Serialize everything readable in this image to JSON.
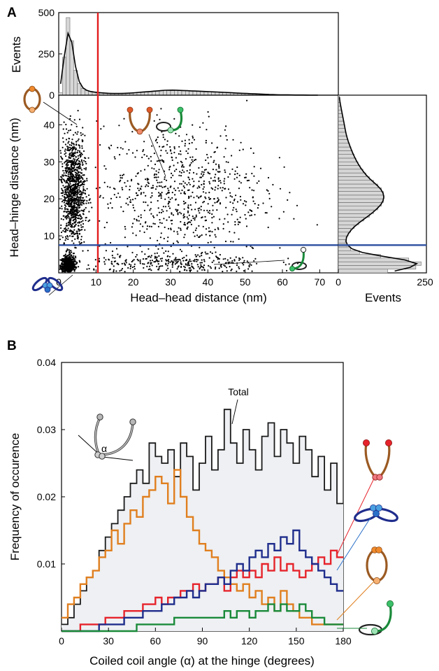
{
  "panels": {
    "a_label": "A",
    "b_label": "B"
  },
  "colors": {
    "total": "#1a1a1a",
    "total_fill": "#eef0f3",
    "orange": "#e07f1f",
    "red": "#e6232b",
    "blue": "#1f2d8c",
    "green": "#1a8a3a",
    "cutoff_red": "#e11d1d",
    "cutoff_blue": "#2d4fa0",
    "hist_fill": "#d6d6d6"
  },
  "chart_data": [
    {
      "id": "scatter",
      "type": "scatter",
      "xlabel": "Head–head distance (nm)",
      "ylabel": "Head–hinge distance (nm)",
      "xlim": [
        0,
        75
      ],
      "ylim": [
        0,
        48
      ],
      "xticks": [
        0,
        10,
        20,
        30,
        40,
        50,
        60,
        70
      ],
      "yticks": [
        10,
        20,
        30,
        40
      ],
      "vertical_line_x": 10.5,
      "horizontal_line_y": 7.5,
      "clusters": [
        {
          "name": "closed",
          "center": [
            2.5,
            2.0
          ],
          "spread": [
            1.0,
            1.2
          ],
          "count": 650
        },
        {
          "name": "vertical_band",
          "center": [
            3.8,
            22
          ],
          "spread": [
            1.6,
            7.5
          ],
          "count": 1100
        },
        {
          "name": "open",
          "center": [
            33,
            22
          ],
          "spread": [
            11,
            9
          ],
          "count": 800
        },
        {
          "name": "bottom_band",
          "center": [
            32,
            2.5
          ],
          "spread": [
            12,
            1.6
          ],
          "count": 330
        }
      ]
    },
    {
      "id": "top_histogram",
      "type": "bar",
      "ylabel": "Events",
      "yticks": [
        0,
        250,
        500
      ],
      "ylim": [
        0,
        500
      ],
      "bin_width": 1,
      "x_start": 0,
      "values": [
        15,
        230,
        470,
        330,
        150,
        70,
        40,
        28,
        22,
        18,
        16,
        14,
        12,
        11,
        10,
        10,
        10,
        11,
        12,
        13,
        15,
        17,
        19,
        20,
        22,
        24,
        26,
        28,
        30,
        30,
        31,
        30,
        29,
        28,
        27,
        26,
        25,
        24,
        23,
        22,
        21,
        20,
        19,
        18,
        17,
        16,
        14,
        13,
        12,
        11,
        10,
        9,
        8,
        7,
        6,
        5,
        4,
        3,
        3,
        2,
        2,
        2,
        1,
        1,
        1,
        1,
        0,
        0,
        0,
        0
      ],
      "fit_line": "smooth"
    },
    {
      "id": "right_histogram",
      "type": "bar",
      "xlabel": "Events",
      "xticks": [
        0,
        250
      ],
      "xlim": [
        0,
        250
      ],
      "bin_width": 1,
      "y_start": 0,
      "values": [
        140,
        220,
        235,
        200,
        120,
        60,
        35,
        25,
        20,
        22,
        28,
        35,
        45,
        58,
        72,
        88,
        100,
        112,
        122,
        128,
        130,
        128,
        122,
        112,
        100,
        88,
        78,
        70,
        62,
        56,
        50,
        45,
        40,
        36,
        32,
        28,
        25,
        22,
        20,
        18,
        16,
        14,
        12,
        10,
        8,
        6,
        4,
        3
      ],
      "fit_line": "smooth"
    },
    {
      "id": "angle_distribution",
      "type": "line",
      "step": true,
      "xlabel": "Coiled coil angle (α) at the hinge (degrees)",
      "ylabel": "Frequency of occurence",
      "xlim": [
        0,
        180
      ],
      "ylim": [
        0,
        0.04
      ],
      "xticks": [
        0,
        30,
        60,
        90,
        120,
        150,
        180
      ],
      "yticks": [
        0.01,
        0.02,
        0.03,
        0.04
      ],
      "bin_width": 4,
      "x_start": 0,
      "annotation": "Total",
      "angle_symbol": "α",
      "series": [
        {
          "color_key": "total",
          "values": [
            0.001,
            0.002,
            0.004,
            0.006,
            0.008,
            0.009,
            0.012,
            0.014,
            0.016,
            0.018,
            0.02,
            0.022,
            0.024,
            0.022,
            0.028,
            0.026,
            0.025,
            0.027,
            0.023,
            0.028,
            0.026,
            0.021,
            0.025,
            0.029,
            0.024,
            0.027,
            0.033,
            0.028,
            0.025,
            0.03,
            0.027,
            0.024,
            0.029,
            0.031,
            0.026,
            0.03,
            0.028,
            0.025,
            0.029,
            0.027,
            0.023,
            0.026,
            0.021,
            0.025,
            0.019
          ]
        },
        {
          "color_key": "orange",
          "values": [
            0.002,
            0.004,
            0.005,
            0.007,
            0.008,
            0.009,
            0.011,
            0.012,
            0.015,
            0.013,
            0.016,
            0.018,
            0.017,
            0.02,
            0.021,
            0.023,
            0.022,
            0.019,
            0.024,
            0.02,
            0.017,
            0.015,
            0.013,
            0.012,
            0.011,
            0.009,
            0.008,
            0.007,
            0.006,
            0.007,
            0.005,
            0.006,
            0.004,
            0.005,
            0.003,
            0.006,
            0.004,
            0.003,
            0.002,
            0.002,
            0.001,
            0.001,
            0.001,
            0.001,
            0.001
          ]
        },
        {
          "color_key": "red",
          "values": [
            0.0,
            0.0,
            0.0,
            0.001,
            0.001,
            0.001,
            0.001,
            0.002,
            0.002,
            0.002,
            0.003,
            0.003,
            0.003,
            0.004,
            0.004,
            0.005,
            0.004,
            0.005,
            0.005,
            0.006,
            0.006,
            0.007,
            0.006,
            0.007,
            0.007,
            0.008,
            0.006,
            0.008,
            0.009,
            0.008,
            0.009,
            0.008,
            0.01,
            0.009,
            0.011,
            0.009,
            0.01,
            0.009,
            0.008,
            0.009,
            0.01,
            0.011,
            0.01,
            0.012,
            0.011
          ]
        },
        {
          "color_key": "blue",
          "values": [
            0.0,
            0.0,
            0.0,
            0.0,
            0.0,
            0.0,
            0.001,
            0.001,
            0.001,
            0.001,
            0.002,
            0.002,
            0.002,
            0.003,
            0.003,
            0.003,
            0.004,
            0.004,
            0.005,
            0.005,
            0.006,
            0.005,
            0.006,
            0.007,
            0.007,
            0.008,
            0.007,
            0.009,
            0.01,
            0.009,
            0.011,
            0.012,
            0.011,
            0.013,
            0.012,
            0.014,
            0.013,
            0.015,
            0.012,
            0.011,
            0.01,
            0.009,
            0.008,
            0.007,
            0.006
          ]
        },
        {
          "color_key": "green",
          "values": [
            0.0,
            0.0,
            0.0,
            0.0,
            0.0,
            0.0,
            0.0,
            0.0,
            0.0,
            0.0,
            0.0,
            0.0,
            0.001,
            0.001,
            0.001,
            0.001,
            0.001,
            0.001,
            0.002,
            0.002,
            0.002,
            0.002,
            0.002,
            0.002,
            0.002,
            0.002,
            0.003,
            0.002,
            0.003,
            0.003,
            0.002,
            0.003,
            0.003,
            0.004,
            0.003,
            0.004,
            0.003,
            0.003,
            0.004,
            0.003,
            0.002,
            0.002,
            0.001,
            0.001,
            0.001
          ]
        }
      ]
    }
  ]
}
